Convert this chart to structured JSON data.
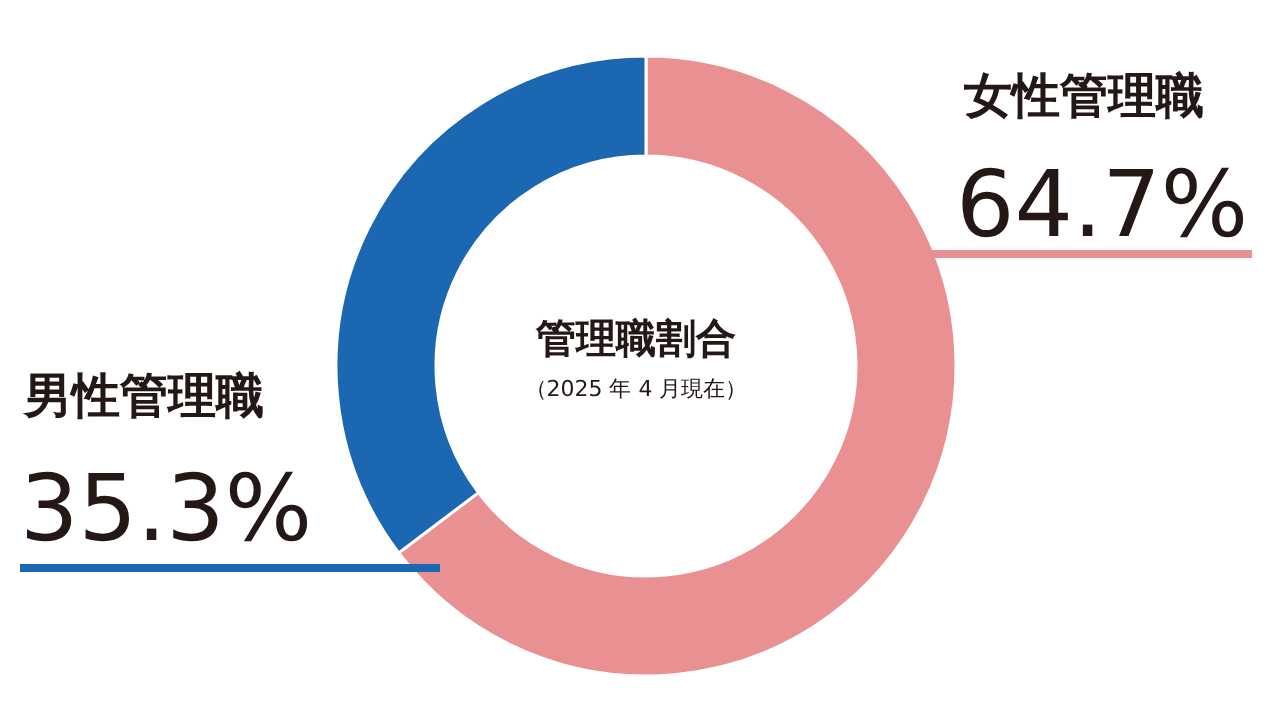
{
  "chart_data": {
    "type": "donut",
    "title": "管理職割合",
    "subtitle": "（2025 年 4 月現在）",
    "categories": [
      "女性管理職",
      "男性管理職"
    ],
    "values": [
      64.7,
      35.3
    ],
    "colors": [
      "#e89092",
      "#1b67b1"
    ],
    "value_labels": [
      "64.7%",
      "35.3%"
    ],
    "legend": false
  }
}
